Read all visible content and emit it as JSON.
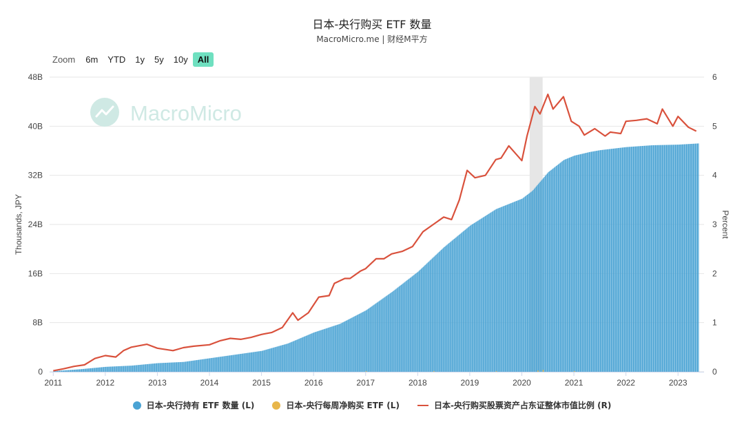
{
  "title": "日本-央行购买 ETF 数量",
  "subtitle": "MacroMicro.me | 财经M平方",
  "watermark": "MacroMicro",
  "zoom": {
    "label": "Zoom",
    "buttons": [
      "6m",
      "YTD",
      "1y",
      "5y",
      "10y",
      "All"
    ],
    "active": "All"
  },
  "colors": {
    "bars": "#4aa3d4",
    "weekly": "#e8b64a",
    "line": "#d9513c",
    "shade": "#e6e6e6",
    "grid": "#e6e6e6",
    "watermark": "#cfe9e4"
  },
  "legend": [
    {
      "label": "日本-央行持有 ETF 数量 (L)",
      "color": "#4aa3d4",
      "shape": "dot"
    },
    {
      "label": "日本-央行每周净购买 ETF (L)",
      "color": "#e8b64a",
      "shape": "dot"
    },
    {
      "label": "日本-央行购买股票资产占东证整体市值比例 (R)",
      "color": "#d9513c",
      "shape": "line"
    }
  ],
  "chart_data": {
    "type": "bar",
    "title": "日本-央行购买 ETF 数量",
    "x_ticks": [
      "2011",
      "2012",
      "2013",
      "2014",
      "2015",
      "2016",
      "2017",
      "2018",
      "2019",
      "2020",
      "2021",
      "2022",
      "2023"
    ],
    "x_range": [
      2010.93,
      2023.5
    ],
    "y_left": {
      "label": "Thousands, JPY",
      "ticks": [
        "0",
        "8B",
        "16B",
        "24B",
        "32B",
        "40B",
        "48B"
      ],
      "range": [
        0,
        48
      ]
    },
    "y_right": {
      "label": "Percent",
      "ticks": [
        "0",
        "1",
        "2",
        "3",
        "4",
        "5",
        "6"
      ],
      "range": [
        0,
        6
      ]
    },
    "shaded_period": [
      2020.15,
      2020.4
    ],
    "series": [
      {
        "name": "日本-央行持有 ETF 数量 (L)",
        "type": "bar",
        "axis": "left",
        "points": [
          [
            2011.0,
            0.1
          ],
          [
            2011.5,
            0.4
          ],
          [
            2012.0,
            0.8
          ],
          [
            2012.5,
            1.0
          ],
          [
            2013.0,
            1.4
          ],
          [
            2013.5,
            1.6
          ],
          [
            2014.0,
            2.2
          ],
          [
            2014.5,
            2.8
          ],
          [
            2015.0,
            3.4
          ],
          [
            2015.5,
            4.6
          ],
          [
            2016.0,
            6.4
          ],
          [
            2016.5,
            7.8
          ],
          [
            2017.0,
            10.0
          ],
          [
            2017.5,
            13.0
          ],
          [
            2018.0,
            16.3
          ],
          [
            2018.5,
            20.3
          ],
          [
            2019.0,
            23.8
          ],
          [
            2019.5,
            26.5
          ],
          [
            2020.0,
            28.2
          ],
          [
            2020.2,
            29.5
          ],
          [
            2020.5,
            32.5
          ],
          [
            2020.8,
            34.5
          ],
          [
            2021.0,
            35.2
          ],
          [
            2021.3,
            35.8
          ],
          [
            2021.5,
            36.1
          ],
          [
            2022.0,
            36.6
          ],
          [
            2022.5,
            36.9
          ],
          [
            2023.0,
            37.0
          ],
          [
            2023.4,
            37.2
          ]
        ]
      },
      {
        "name": "日本-央行每周净购买 ETF (L)",
        "type": "bar",
        "axis": "left",
        "points": [
          [
            2017.0,
            0.1
          ],
          [
            2018.3,
            0.1
          ],
          [
            2019.5,
            0.1
          ],
          [
            2020.3,
            0.2
          ],
          [
            2020.4,
            0.3
          ],
          [
            2021.0,
            0.1
          ]
        ]
      },
      {
        "name": "日本-央行购买股票资产占东证整体市值比例 (R)",
        "type": "line",
        "axis": "right",
        "points": [
          [
            2011.0,
            0.02
          ],
          [
            2011.2,
            0.06
          ],
          [
            2011.4,
            0.11
          ],
          [
            2011.6,
            0.14
          ],
          [
            2011.8,
            0.27
          ],
          [
            2012.0,
            0.33
          ],
          [
            2012.2,
            0.3
          ],
          [
            2012.35,
            0.43
          ],
          [
            2012.5,
            0.5
          ],
          [
            2012.8,
            0.56
          ],
          [
            2013.0,
            0.48
          ],
          [
            2013.3,
            0.43
          ],
          [
            2013.5,
            0.49
          ],
          [
            2013.7,
            0.52
          ],
          [
            2014.0,
            0.55
          ],
          [
            2014.2,
            0.63
          ],
          [
            2014.4,
            0.68
          ],
          [
            2014.6,
            0.66
          ],
          [
            2014.8,
            0.7
          ],
          [
            2015.0,
            0.76
          ],
          [
            2015.2,
            0.8
          ],
          [
            2015.4,
            0.9
          ],
          [
            2015.6,
            1.2
          ],
          [
            2015.7,
            1.05
          ],
          [
            2015.9,
            1.2
          ],
          [
            2016.1,
            1.52
          ],
          [
            2016.3,
            1.55
          ],
          [
            2016.4,
            1.8
          ],
          [
            2016.6,
            1.9
          ],
          [
            2016.7,
            1.9
          ],
          [
            2016.9,
            2.05
          ],
          [
            2017.0,
            2.1
          ],
          [
            2017.2,
            2.3
          ],
          [
            2017.35,
            2.3
          ],
          [
            2017.5,
            2.4
          ],
          [
            2017.7,
            2.45
          ],
          [
            2017.9,
            2.55
          ],
          [
            2018.1,
            2.85
          ],
          [
            2018.3,
            3.0
          ],
          [
            2018.5,
            3.15
          ],
          [
            2018.65,
            3.1
          ],
          [
            2018.8,
            3.5
          ],
          [
            2018.95,
            4.1
          ],
          [
            2019.1,
            3.95
          ],
          [
            2019.3,
            4.0
          ],
          [
            2019.5,
            4.32
          ],
          [
            2019.6,
            4.35
          ],
          [
            2019.75,
            4.6
          ],
          [
            2019.9,
            4.42
          ],
          [
            2020.0,
            4.3
          ],
          [
            2020.1,
            4.8
          ],
          [
            2020.25,
            5.4
          ],
          [
            2020.35,
            5.25
          ],
          [
            2020.5,
            5.65
          ],
          [
            2020.6,
            5.35
          ],
          [
            2020.8,
            5.6
          ],
          [
            2020.95,
            5.1
          ],
          [
            2021.1,
            5.0
          ],
          [
            2021.2,
            4.82
          ],
          [
            2021.4,
            4.95
          ],
          [
            2021.6,
            4.8
          ],
          [
            2021.7,
            4.88
          ],
          [
            2021.9,
            4.85
          ],
          [
            2022.0,
            5.1
          ],
          [
            2022.2,
            5.12
          ],
          [
            2022.4,
            5.15
          ],
          [
            2022.6,
            5.05
          ],
          [
            2022.7,
            5.35
          ],
          [
            2022.9,
            5.0
          ],
          [
            2023.0,
            5.2
          ],
          [
            2023.2,
            4.98
          ],
          [
            2023.35,
            4.9
          ]
        ]
      }
    ]
  }
}
